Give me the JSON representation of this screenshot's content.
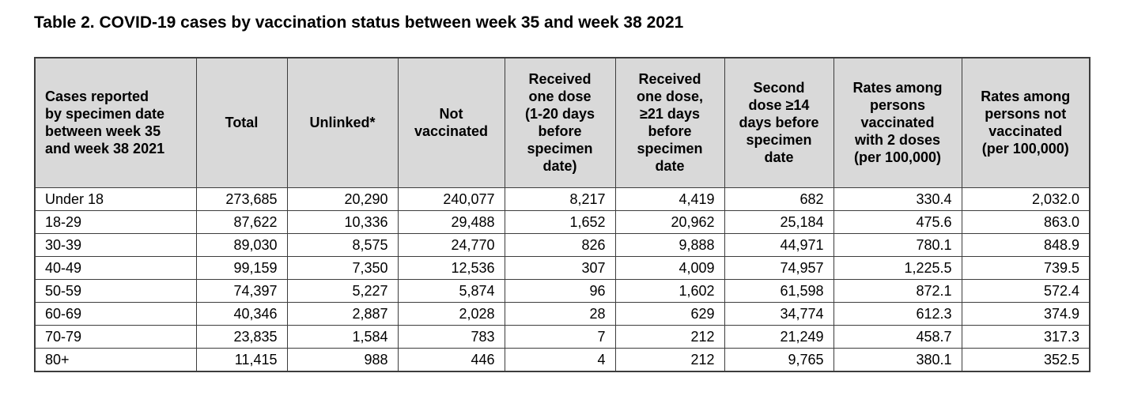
{
  "title": "Table 2. COVID-19 cases by vaccination status between week 35 and week 38 2021",
  "colors": {
    "header_bg": "#d9d9d9",
    "border": "#3d3d3d",
    "text": "#000000",
    "background": "#ffffff"
  },
  "table": {
    "columns": [
      {
        "label": "Cases reported\nby specimen date\nbetween week 35\nand week 38 2021"
      },
      {
        "label": "Total"
      },
      {
        "label": "Unlinked*"
      },
      {
        "label": "Not\nvaccinated"
      },
      {
        "label": "Received\none dose\n(1-20 days\nbefore\nspecimen\ndate)"
      },
      {
        "label": "Received\none dose,\n≥21 days\nbefore\nspecimen\ndate"
      },
      {
        "label": "Second\ndose ≥14\ndays before\nspecimen\ndate"
      },
      {
        "label": "Rates among\npersons\nvaccinated\nwith 2 doses\n(per 100,000)"
      },
      {
        "label": "Rates among\npersons not\nvaccinated\n(per 100,000)"
      }
    ],
    "rows": [
      [
        "Under 18",
        "273,685",
        "20,290",
        "240,077",
        "8,217",
        "4,419",
        "682",
        "330.4",
        "2,032.0"
      ],
      [
        "18-29",
        "87,622",
        "10,336",
        "29,488",
        "1,652",
        "20,962",
        "25,184",
        "475.6",
        "863.0"
      ],
      [
        "30-39",
        "89,030",
        "8,575",
        "24,770",
        "826",
        "9,888",
        "44,971",
        "780.1",
        "848.9"
      ],
      [
        "40-49",
        "99,159",
        "7,350",
        "12,536",
        "307",
        "4,009",
        "74,957",
        "1,225.5",
        "739.5"
      ],
      [
        "50-59",
        "74,397",
        "5,227",
        "5,874",
        "96",
        "1,602",
        "61,598",
        "872.1",
        "572.4"
      ],
      [
        "60-69",
        "40,346",
        "2,887",
        "2,028",
        "28",
        "629",
        "34,774",
        "612.3",
        "374.9"
      ],
      [
        "70-79",
        "23,835",
        "1,584",
        "783",
        "7",
        "212",
        "21,249",
        "458.7",
        "317.3"
      ],
      [
        "80+",
        "11,415",
        "988",
        "446",
        "4",
        "212",
        "9,765",
        "380.1",
        "352.5"
      ]
    ]
  }
}
